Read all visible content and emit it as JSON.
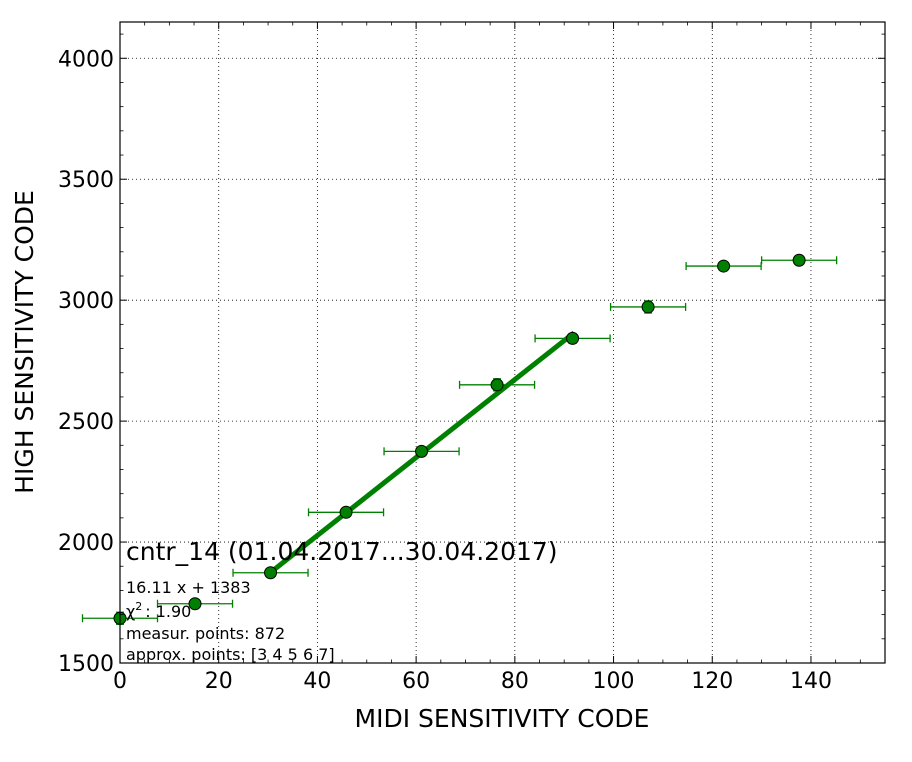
{
  "chart_data": {
    "type": "scatter",
    "xlabel": "MIDI SENSITIVITY CODE",
    "ylabel": "HIGH SENSITIVITY CODE",
    "xlim": [
      0,
      155
    ],
    "ylim": [
      1500,
      4150
    ],
    "x_ticks": [
      "0",
      "20",
      "40",
      "60",
      "80",
      "100",
      "120",
      "140"
    ],
    "y_ticks": [
      "1500",
      "2000",
      "2500",
      "3000",
      "3500",
      "4000"
    ],
    "grid": true,
    "series": [
      {
        "kind": "errorbar-points",
        "color": "#008000",
        "points": [
          {
            "x": 0.0,
            "y": 1685,
            "xerr": 7.6,
            "yerr": 25
          },
          {
            "x": 15.2,
            "y": 1745,
            "xerr": 7.6,
            "yerr": 15
          },
          {
            "x": 30.5,
            "y": 1873,
            "xerr": 7.6,
            "yerr": 15
          },
          {
            "x": 45.8,
            "y": 2123,
            "xerr": 7.6,
            "yerr": 15
          },
          {
            "x": 61.1,
            "y": 2375,
            "xerr": 7.6,
            "yerr": 15
          },
          {
            "x": 76.4,
            "y": 2650,
            "xerr": 7.6,
            "yerr": 25
          },
          {
            "x": 91.7,
            "y": 2842,
            "xerr": 7.6,
            "yerr": 20
          },
          {
            "x": 107.0,
            "y": 2972,
            "xerr": 7.6,
            "yerr": 25
          },
          {
            "x": 122.3,
            "y": 3141,
            "xerr": 7.6,
            "yerr": 15
          },
          {
            "x": 137.6,
            "y": 3165,
            "xerr": 7.6,
            "yerr": 15
          }
        ]
      },
      {
        "kind": "fit-line",
        "color": "#008000",
        "slope": 16.11,
        "intercept": 1383,
        "x_range": [
          30.5,
          92.0
        ]
      }
    ],
    "annotations": {
      "title": "cntr_14 (01.04.2017...30.04.2017)",
      "equation": "16.11 x + 1383",
      "chi_symbol": "χ",
      "chi_sup": "2",
      "chi_value": ": 1.90",
      "measur_points": "measur. points: 872",
      "approx_points": "approx. points: [3 4 5 6 7]"
    }
  }
}
